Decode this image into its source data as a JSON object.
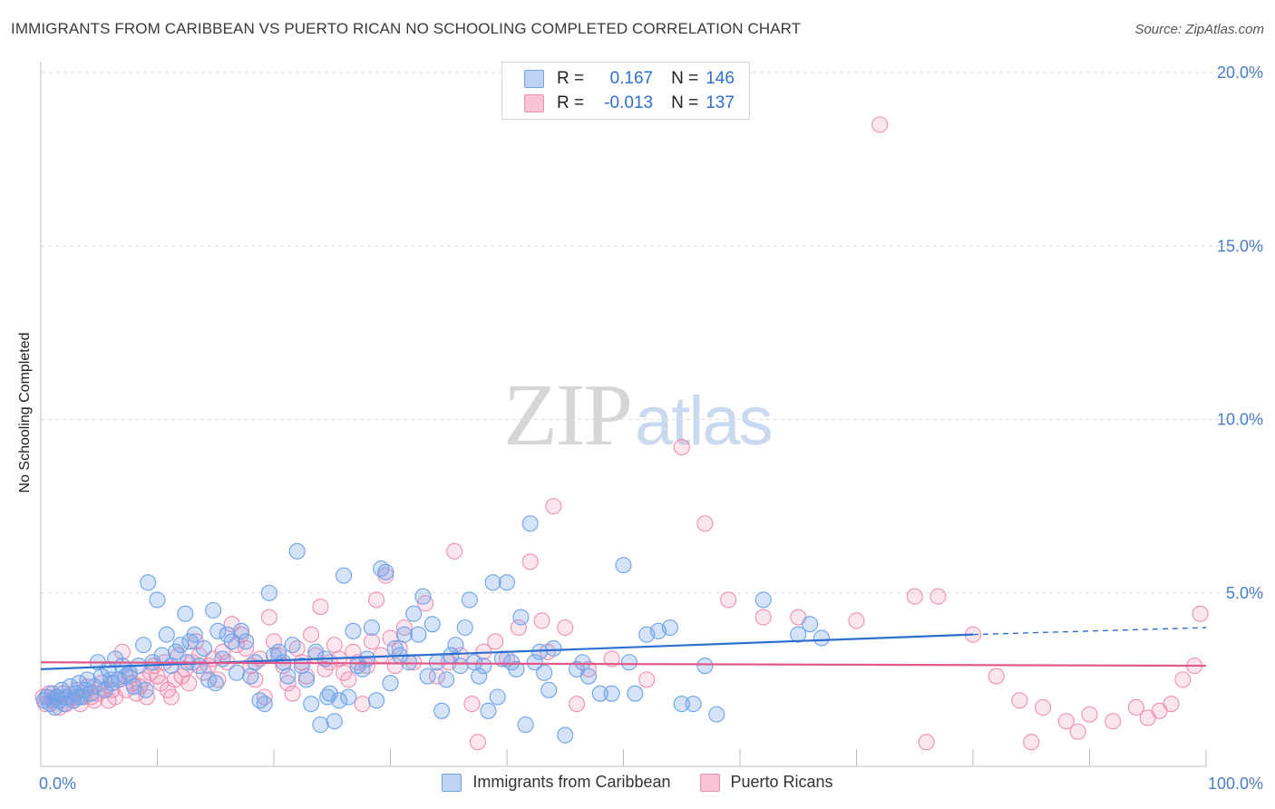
{
  "title": "IMMIGRANTS FROM CARIBBEAN VS PUERTO RICAN NO SCHOOLING COMPLETED CORRELATION CHART",
  "source": "Source: ZipAtlas.com",
  "watermark": {
    "zip": "ZIP",
    "atlas": "atlas"
  },
  "legend": {
    "row1": {
      "r_label": "R =",
      "r_value": "0.167",
      "n_label": "N =",
      "n_value": "146"
    },
    "row2": {
      "r_label": "R =",
      "r_value": "-0.013",
      "n_label": "N =",
      "n_value": "137"
    }
  },
  "bottom_legend": {
    "series1": "Immigrants from Caribbean",
    "series2": "Puerto Ricans"
  },
  "colors": {
    "blue": "#6fa3e8",
    "blue_line": "#2b6fcf",
    "pink": "#ef8fb1",
    "pink_line": "#e05a8a",
    "tick": "#4a7cc9"
  },
  "chart_data": {
    "type": "scatter",
    "ylabel": "No Schooling Completed",
    "xlim": [
      0,
      100
    ],
    "ylim": [
      0,
      20
    ],
    "x_tick_labels": [
      "0.0%",
      "100.0%"
    ],
    "y_ticks": [
      5,
      10,
      15,
      20
    ],
    "y_tick_labels": [
      "5.0%",
      "10.0%",
      "15.0%",
      "20.0%"
    ],
    "grid": true,
    "series": [
      {
        "name": "Immigrants from Caribbean",
        "color": "#6fa3e8",
        "trend": {
          "x": [
            0,
            80
          ],
          "y": [
            2.8,
            3.8
          ],
          "dashed_to": [
            100,
            4.0
          ]
        },
        "points": [
          [
            0.3,
            1.9
          ],
          [
            0.5,
            2.0
          ],
          [
            0.8,
            1.8
          ],
          [
            1.0,
            2.1
          ],
          [
            1.2,
            1.7
          ],
          [
            1.4,
            2.0
          ],
          [
            1.6,
            1.9
          ],
          [
            1.8,
            2.2
          ],
          [
            2.0,
            1.8
          ],
          [
            2.2,
            2.0
          ],
          [
            2.5,
            2.3
          ],
          [
            2.8,
            1.9
          ],
          [
            3.0,
            2.1
          ],
          [
            3.3,
            2.4
          ],
          [
            3.5,
            2.0
          ],
          [
            3.8,
            2.2
          ],
          [
            4.0,
            2.5
          ],
          [
            4.3,
            2.1
          ],
          [
            4.6,
            2.3
          ],
          [
            4.9,
            3.0
          ],
          [
            5.2,
            2.6
          ],
          [
            5.5,
            2.2
          ],
          [
            5.8,
            2.8
          ],
          [
            6.1,
            2.4
          ],
          [
            6.4,
            3.1
          ],
          [
            6.7,
            2.5
          ],
          [
            7.0,
            2.9
          ],
          [
            7.3,
            2.6
          ],
          [
            7.6,
            2.7
          ],
          [
            8.0,
            2.3
          ],
          [
            8.4,
            2.9
          ],
          [
            8.8,
            3.5
          ],
          [
            9.2,
            5.3
          ],
          [
            9.6,
            3.0
          ],
          [
            10.0,
            4.8
          ],
          [
            10.4,
            3.2
          ],
          [
            10.8,
            3.8
          ],
          [
            11.2,
            2.9
          ],
          [
            11.6,
            3.3
          ],
          [
            12.0,
            3.5
          ],
          [
            12.4,
            4.4
          ],
          [
            12.8,
            3.6
          ],
          [
            13.2,
            3.8
          ],
          [
            13.6,
            2.9
          ],
          [
            14.0,
            3.4
          ],
          [
            14.4,
            2.5
          ],
          [
            14.8,
            4.5
          ],
          [
            15.2,
            3.9
          ],
          [
            15.6,
            3.1
          ],
          [
            16.0,
            3.8
          ],
          [
            16.4,
            3.6
          ],
          [
            16.8,
            2.7
          ],
          [
            17.2,
            3.9
          ],
          [
            17.6,
            3.6
          ],
          [
            18.0,
            2.6
          ],
          [
            18.4,
            3.0
          ],
          [
            18.8,
            1.9
          ],
          [
            19.2,
            1.8
          ],
          [
            19.6,
            5.0
          ],
          [
            20.0,
            3.2
          ],
          [
            20.4,
            3.3
          ],
          [
            20.8,
            3.0
          ],
          [
            21.2,
            2.6
          ],
          [
            21.6,
            3.5
          ],
          [
            22.0,
            6.2
          ],
          [
            22.4,
            2.9
          ],
          [
            22.8,
            2.5
          ],
          [
            23.2,
            1.8
          ],
          [
            23.6,
            3.3
          ],
          [
            24.0,
            1.2
          ],
          [
            24.4,
            3.1
          ],
          [
            24.8,
            2.1
          ],
          [
            25.2,
            1.3
          ],
          [
            25.6,
            1.9
          ],
          [
            26.0,
            5.5
          ],
          [
            26.4,
            2.0
          ],
          [
            26.8,
            3.9
          ],
          [
            27.2,
            2.9
          ],
          [
            27.6,
            2.8
          ],
          [
            28.0,
            3.1
          ],
          [
            28.4,
            4.0
          ],
          [
            28.8,
            1.9
          ],
          [
            29.2,
            5.7
          ],
          [
            29.6,
            5.6
          ],
          [
            30.0,
            2.4
          ],
          [
            30.4,
            3.4
          ],
          [
            30.8,
            3.2
          ],
          [
            31.2,
            3.8
          ],
          [
            31.6,
            3.0
          ],
          [
            32.0,
            4.4
          ],
          [
            32.4,
            3.8
          ],
          [
            32.8,
            4.9
          ],
          [
            33.2,
            2.6
          ],
          [
            33.6,
            4.1
          ],
          [
            34.0,
            3.0
          ],
          [
            34.4,
            1.6
          ],
          [
            34.8,
            2.5
          ],
          [
            35.2,
            3.2
          ],
          [
            35.6,
            3.5
          ],
          [
            36.0,
            2.9
          ],
          [
            36.4,
            4.0
          ],
          [
            36.8,
            4.8
          ],
          [
            37.2,
            3.0
          ],
          [
            37.6,
            2.6
          ],
          [
            38.0,
            2.9
          ],
          [
            38.4,
            1.6
          ],
          [
            38.8,
            5.3
          ],
          [
            39.2,
            2.0
          ],
          [
            39.6,
            3.1
          ],
          [
            40.0,
            5.3
          ],
          [
            40.4,
            3.0
          ],
          [
            40.8,
            2.8
          ],
          [
            41.2,
            4.3
          ],
          [
            41.6,
            1.2
          ],
          [
            42.0,
            7.0
          ],
          [
            42.4,
            3.0
          ],
          [
            42.8,
            3.3
          ],
          [
            43.2,
            2.7
          ],
          [
            43.6,
            2.2
          ],
          [
            44.0,
            3.4
          ],
          [
            45.0,
            0.9
          ],
          [
            46.0,
            2.8
          ],
          [
            46.5,
            3.0
          ],
          [
            47.0,
            2.6
          ],
          [
            48.0,
            2.1
          ],
          [
            49.0,
            2.1
          ],
          [
            50.0,
            5.8
          ],
          [
            50.5,
            3.0
          ],
          [
            51.0,
            2.1
          ],
          [
            52.0,
            3.8
          ],
          [
            53.0,
            3.9
          ],
          [
            54.0,
            4.0
          ],
          [
            55.0,
            1.8
          ],
          [
            56.0,
            1.8
          ],
          [
            57.0,
            2.9
          ],
          [
            58.0,
            1.5
          ],
          [
            62.0,
            4.8
          ],
          [
            65.0,
            3.8
          ],
          [
            66.0,
            4.1
          ],
          [
            67.0,
            3.7
          ],
          [
            3.2,
            2.0
          ],
          [
            6.0,
            2.5
          ],
          [
            9.0,
            2.2
          ],
          [
            12.6,
            3.0
          ],
          [
            15.0,
            2.4
          ],
          [
            24.6,
            2.0
          ]
        ]
      },
      {
        "name": "Puerto Ricans",
        "color": "#ef8fb1",
        "trend": {
          "x": [
            0,
            100
          ],
          "y": [
            3.0,
            2.9
          ]
        },
        "points": [
          [
            0.2,
            2.0
          ],
          [
            0.4,
            1.8
          ],
          [
            0.7,
            2.1
          ],
          [
            1.0,
            1.9
          ],
          [
            1.3,
            2.0
          ],
          [
            1.6,
            1.7
          ],
          [
            1.9,
            2.1
          ],
          [
            2.2,
            1.8
          ],
          [
            2.5,
            2.0
          ],
          [
            2.8,
            1.9
          ],
          [
            3.1,
            2.2
          ],
          [
            3.4,
            1.8
          ],
          [
            3.7,
            2.0
          ],
          [
            4.0,
            2.3
          ],
          [
            4.3,
            2.0
          ],
          [
            4.6,
            1.9
          ],
          [
            4.9,
            2.1
          ],
          [
            5.2,
            2.4
          ],
          [
            5.5,
            2.2
          ],
          [
            5.8,
            1.9
          ],
          [
            6.1,
            2.2
          ],
          [
            6.4,
            2.0
          ],
          [
            6.7,
            2.5
          ],
          [
            7.0,
            3.3
          ],
          [
            7.3,
            2.2
          ],
          [
            7.6,
            2.6
          ],
          [
            7.9,
            2.4
          ],
          [
            8.2,
            2.1
          ],
          [
            8.5,
            2.3
          ],
          [
            8.8,
            2.5
          ],
          [
            9.1,
            2.0
          ],
          [
            9.4,
            2.7
          ],
          [
            9.7,
            2.9
          ],
          [
            10.0,
            2.6
          ],
          [
            10.3,
            2.4
          ],
          [
            10.6,
            3.0
          ],
          [
            10.9,
            2.2
          ],
          [
            11.2,
            2.0
          ],
          [
            11.5,
            2.5
          ],
          [
            11.8,
            3.2
          ],
          [
            12.1,
            2.6
          ],
          [
            12.4,
            2.8
          ],
          [
            12.7,
            2.4
          ],
          [
            13.0,
            3.0
          ],
          [
            13.3,
            3.6
          ],
          [
            13.6,
            3.2
          ],
          [
            14.0,
            2.7
          ],
          [
            14.4,
            2.9
          ],
          [
            14.8,
            3.1
          ],
          [
            15.2,
            2.5
          ],
          [
            15.6,
            3.3
          ],
          [
            16.0,
            3.0
          ],
          [
            16.4,
            4.1
          ],
          [
            16.8,
            3.5
          ],
          [
            17.2,
            3.8
          ],
          [
            17.6,
            3.4
          ],
          [
            18.0,
            2.9
          ],
          [
            18.4,
            2.5
          ],
          [
            18.8,
            3.1
          ],
          [
            19.2,
            2.0
          ],
          [
            19.6,
            4.3
          ],
          [
            20.0,
            3.6
          ],
          [
            20.4,
            3.2
          ],
          [
            20.8,
            2.9
          ],
          [
            21.2,
            2.4
          ],
          [
            21.6,
            2.1
          ],
          [
            22.0,
            3.4
          ],
          [
            22.4,
            3.0
          ],
          [
            22.8,
            2.6
          ],
          [
            23.2,
            3.8
          ],
          [
            23.6,
            3.2
          ],
          [
            24.0,
            4.6
          ],
          [
            24.4,
            2.8
          ],
          [
            24.8,
            3.0
          ],
          [
            25.2,
            3.5
          ],
          [
            25.6,
            3.1
          ],
          [
            26.0,
            2.7
          ],
          [
            26.4,
            2.5
          ],
          [
            26.8,
            3.3
          ],
          [
            27.2,
            3.0
          ],
          [
            27.6,
            1.8
          ],
          [
            28.0,
            2.9
          ],
          [
            28.4,
            3.6
          ],
          [
            28.8,
            4.8
          ],
          [
            29.2,
            3.2
          ],
          [
            29.6,
            5.5
          ],
          [
            30.0,
            3.7
          ],
          [
            30.4,
            2.9
          ],
          [
            30.8,
            3.4
          ],
          [
            31.2,
            4.0
          ],
          [
            32.0,
            3.0
          ],
          [
            33.0,
            4.7
          ],
          [
            34.0,
            2.6
          ],
          [
            35.0,
            3.0
          ],
          [
            35.5,
            6.2
          ],
          [
            36.0,
            3.2
          ],
          [
            37.0,
            1.8
          ],
          [
            37.5,
            0.7
          ],
          [
            38.0,
            3.3
          ],
          [
            39.0,
            3.6
          ],
          [
            40.0,
            3.1
          ],
          [
            41.0,
            4.0
          ],
          [
            42.0,
            5.9
          ],
          [
            43.0,
            4.2
          ],
          [
            43.5,
            3.3
          ],
          [
            44.0,
            7.5
          ],
          [
            45.0,
            4.0
          ],
          [
            46.0,
            1.8
          ],
          [
            47.0,
            2.8
          ],
          [
            49.0,
            3.1
          ],
          [
            52.0,
            2.5
          ],
          [
            55.0,
            9.2
          ],
          [
            57.0,
            7.0
          ],
          [
            59.0,
            4.8
          ],
          [
            62.0,
            4.3
          ],
          [
            65.0,
            4.3
          ],
          [
            70.0,
            4.2
          ],
          [
            72.0,
            18.5
          ],
          [
            75.0,
            4.9
          ],
          [
            77.0,
            4.9
          ],
          [
            80.0,
            3.8
          ],
          [
            82.0,
            2.6
          ],
          [
            84.0,
            1.9
          ],
          [
            86.0,
            1.7
          ],
          [
            88.0,
            1.3
          ],
          [
            90.0,
            1.5
          ],
          [
            92.0,
            1.3
          ],
          [
            94.0,
            1.7
          ],
          [
            95.0,
            1.4
          ],
          [
            96.0,
            1.6
          ],
          [
            97.0,
            1.8
          ],
          [
            98.0,
            2.5
          ],
          [
            99.0,
            2.9
          ],
          [
            99.5,
            4.4
          ],
          [
            76.0,
            0.7
          ],
          [
            85.0,
            0.7
          ],
          [
            89.0,
            1.0
          ]
        ]
      }
    ]
  }
}
